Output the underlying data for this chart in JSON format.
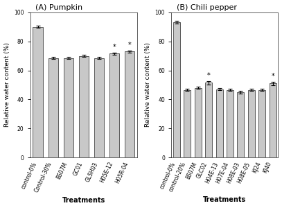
{
  "panel_A": {
    "title": "(A) Pumpkin",
    "categories": [
      "control-0%",
      "Control-30%",
      "BS07M",
      "GC01",
      "GLSH03",
      "H05E-12",
      "H05R-04"
    ],
    "values": [
      90.0,
      68.5,
      68.5,
      70.0,
      68.5,
      71.5,
      73.0
    ],
    "errors": [
      0.8,
      0.8,
      0.8,
      0.8,
      0.8,
      0.8,
      0.8
    ],
    "asterisks": [
      false,
      false,
      false,
      false,
      false,
      true,
      true
    ],
    "ylabel": "Relative water content (%)",
    "xlabel": "Treatments",
    "ylim": [
      0,
      100
    ],
    "yticks": [
      0,
      20,
      40,
      60,
      80,
      100
    ]
  },
  "panel_B": {
    "title": "(B) Chili pepper",
    "categories": [
      "control-0%",
      "control-20%",
      "BS07M",
      "GLC02",
      "H04E-13",
      "H07E-04",
      "H08E-03",
      "H08E-05",
      "KJ24",
      "KJ40"
    ],
    "values": [
      93.0,
      46.5,
      48.0,
      51.5,
      47.0,
      46.5,
      45.0,
      46.5,
      46.5,
      51.0
    ],
    "errors": [
      1.0,
      0.8,
      0.8,
      1.2,
      0.8,
      0.8,
      0.8,
      0.8,
      0.8,
      1.2
    ],
    "asterisks": [
      false,
      false,
      false,
      true,
      false,
      false,
      false,
      false,
      false,
      true
    ],
    "ylabel": "Relative water content (%)",
    "xlabel": "Treatments",
    "ylim": [
      0,
      100
    ],
    "yticks": [
      0,
      20,
      40,
      60,
      80,
      100
    ]
  },
  "bar_color": "#c8c8c8",
  "bar_edgecolor": "#444444",
  "bar_linewidth": 0.6,
  "errorbar_color": "black",
  "errorbar_linewidth": 0.8,
  "errorbar_capsize": 2,
  "tick_fontsize": 5.5,
  "label_fontsize": 6.5,
  "title_fontsize": 8,
  "asterisk_fontsize": 7,
  "xlabel_fontsize": 7,
  "background_color": "#ffffff"
}
